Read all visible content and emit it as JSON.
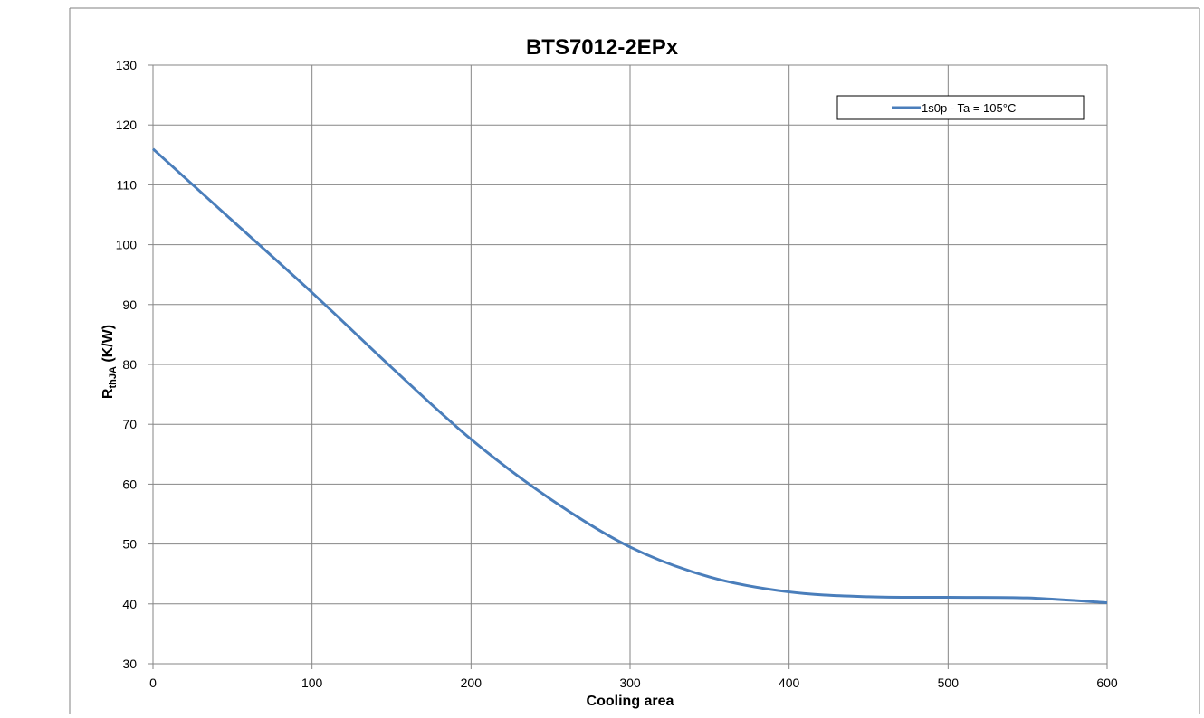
{
  "chart_data": {
    "type": "line",
    "title": "BTS7012-2EPx",
    "xlabel": "Cooling area",
    "ylabel_main": "R",
    "ylabel_sub": "thJA",
    "ylabel_unit": " (K/W)",
    "xlim": [
      0,
      600
    ],
    "ylim": [
      30,
      130
    ],
    "xticks": [
      0,
      100,
      200,
      300,
      400,
      500,
      600
    ],
    "yticks": [
      30,
      40,
      50,
      60,
      70,
      80,
      90,
      100,
      110,
      120,
      130
    ],
    "grid": true,
    "legend_position": "top-right",
    "series": [
      {
        "name": "1s0p - Ta = 105°C",
        "color": "#4a7ebb",
        "x": [
          0,
          50,
          100,
          150,
          200,
          250,
          300,
          350,
          400,
          450,
          500,
          550,
          600
        ],
        "y": [
          116,
          104,
          92,
          79.5,
          67.5,
          57.5,
          49.5,
          44.5,
          42,
          41.2,
          41.1,
          41.0,
          40.2
        ]
      }
    ]
  }
}
